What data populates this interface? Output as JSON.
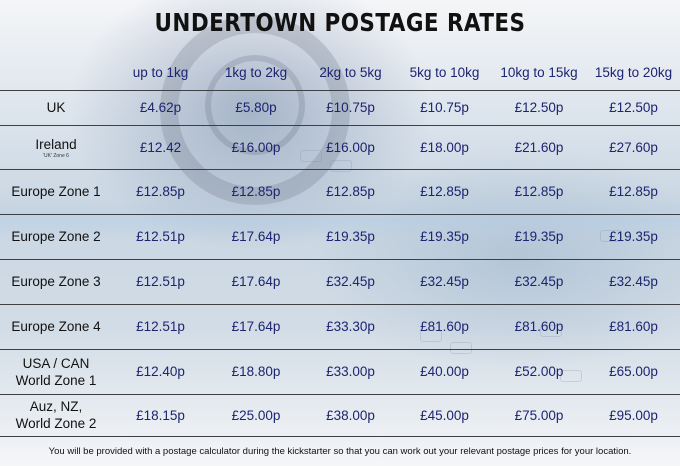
{
  "title": "UNDERTOWN POSTAGE RATES",
  "columns": [
    "up to 1kg",
    "1kg to 2kg",
    "2kg to 5kg",
    "5kg to 10kg",
    "10kg to 15kg",
    "15kg to 20kg"
  ],
  "rows": [
    {
      "zone": "UK",
      "zone_line2": "",
      "note": "",
      "prices": [
        "£4.62p",
        "£5.80p",
        "£10.75p",
        "£10.75p",
        "£12.50p",
        "£12.50p"
      ]
    },
    {
      "zone": "Ireland",
      "zone_line2": "",
      "note": "'UK' Zone 6",
      "prices": [
        "£12.42",
        "£16.00p",
        "£16.00p",
        "£18.00p",
        "£21.60p",
        "£27.60p"
      ]
    },
    {
      "zone": "Europe Zone 1",
      "zone_line2": "",
      "note": "",
      "prices": [
        "£12.85p",
        "£12.85p",
        "£12.85p",
        "£12.85p",
        "£12.85p",
        "£12.85p"
      ]
    },
    {
      "zone": "Europe Zone 2",
      "zone_line2": "",
      "note": "",
      "prices": [
        "£12.51p",
        "£17.64p",
        "£19.35p",
        "£19.35p",
        "£19.35p",
        "£19.35p"
      ]
    },
    {
      "zone": "Europe Zone 3",
      "zone_line2": "",
      "note": "",
      "prices": [
        "£12.51p",
        "£17.64p",
        "£32.45p",
        "£32.45p",
        "£32.45p",
        "£32.45p"
      ]
    },
    {
      "zone": "Europe Zone 4",
      "zone_line2": "",
      "note": "",
      "prices": [
        "£12.51p",
        "£17.64p",
        "£33.30p",
        "£81.60p",
        "£81.60p",
        "£81.60p"
      ]
    },
    {
      "zone": "USA / CAN",
      "zone_line2": "World Zone 1",
      "note": "",
      "prices": [
        "£12.40p",
        "£18.80p",
        "£33.00p",
        "£40.00p",
        "£52.00p",
        "£65.00p"
      ]
    },
    {
      "zone": "Auz, NZ,",
      "zone_line2": "World Zone 2",
      "note": "",
      "prices": [
        "£18.15p",
        "£25.00p",
        "£38.00p",
        "£45.00p",
        "£75.00p",
        "£95.00p"
      ]
    }
  ],
  "footnote": "You will be provided with a postage calculator during the kickstarter so that you can work out your relevant postage prices for your location."
}
